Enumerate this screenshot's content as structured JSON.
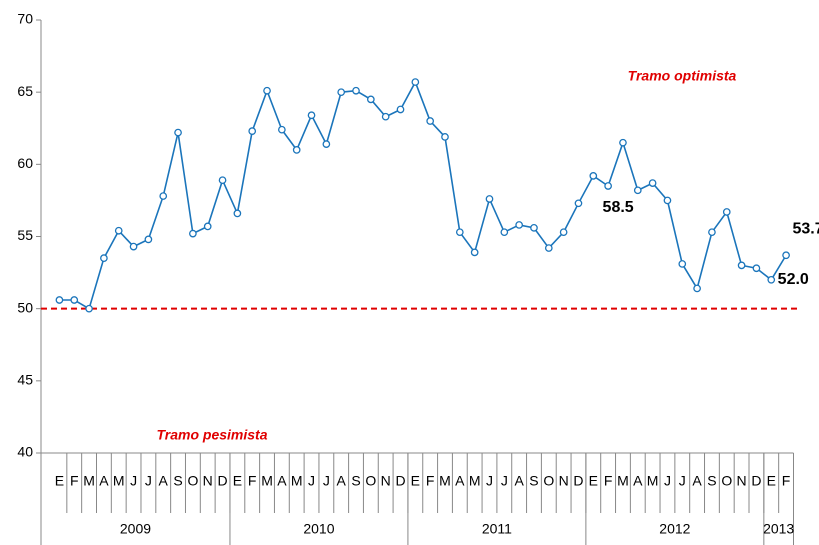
{
  "chart_data": {
    "type": "line",
    "categories": [
      "E",
      "F",
      "M",
      "A",
      "M",
      "J",
      "J",
      "A",
      "S",
      "O",
      "N",
      "D",
      "E",
      "F",
      "M",
      "A",
      "M",
      "J",
      "J",
      "A",
      "S",
      "O",
      "N",
      "D",
      "E",
      "F",
      "M",
      "A",
      "M",
      "J",
      "J",
      "A",
      "S",
      "O",
      "N",
      "D",
      "E",
      "F",
      "M",
      "A",
      "M",
      "J",
      "J",
      "A",
      "S",
      "O",
      "N",
      "D",
      "E",
      "F"
    ],
    "years": [
      "2009",
      "2010",
      "2011",
      "2012",
      "2013"
    ],
    "series": [
      {
        "color": "#1b75bb",
        "values": [
          50.6,
          50.6,
          50.0,
          53.5,
          55.4,
          54.3,
          54.8,
          57.8,
          62.2,
          55.2,
          55.7,
          58.9,
          56.6,
          62.3,
          65.1,
          62.4,
          61.0,
          63.4,
          61.4,
          65.0,
          65.1,
          64.5,
          63.3,
          63.8,
          65.7,
          63.0,
          61.9,
          55.3,
          53.9,
          57.6,
          55.3,
          55.8,
          55.6,
          54.2,
          55.3,
          57.3,
          59.2,
          58.5,
          61.5,
          58.2,
          58.7,
          57.5,
          53.1,
          51.4,
          55.3,
          56.7,
          53.0,
          52.8,
          52.0,
          53.7
        ],
        "value_labels": [
          null,
          null,
          null,
          null,
          null,
          null,
          null,
          null,
          null,
          null,
          null,
          null,
          null,
          null,
          null,
          null,
          null,
          null,
          null,
          null,
          null,
          null,
          null,
          null,
          null,
          null,
          null,
          null,
          null,
          null,
          null,
          null,
          null,
          null,
          null,
          null,
          null,
          "58.5",
          null,
          null,
          null,
          null,
          null,
          null,
          null,
          null,
          null,
          null,
          "52.0",
          "53.7"
        ]
      }
    ],
    "ylim": [
      40,
      70
    ],
    "yticks": [
      40,
      45,
      50,
      55,
      60,
      65,
      70
    ],
    "reference_line": {
      "value": 50,
      "color": "#e00000"
    },
    "annotations": [
      "Tramo optimista",
      "Tramo pesimista"
    ]
  }
}
